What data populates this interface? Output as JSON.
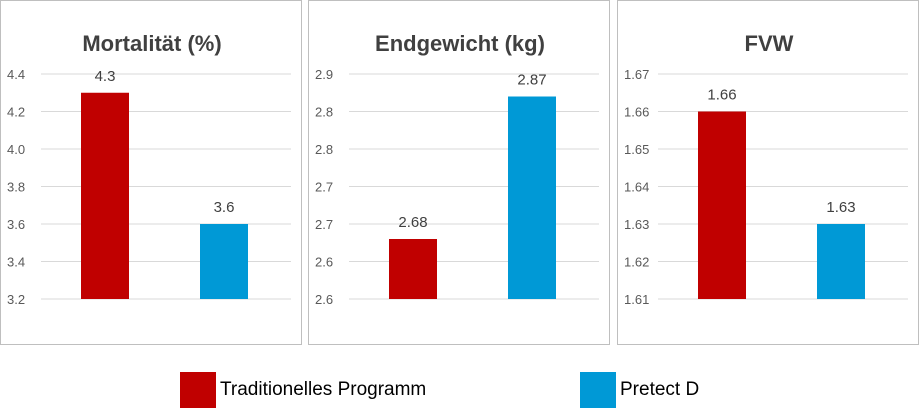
{
  "colors": {
    "series1": "#c00000",
    "series2": "#0099d6",
    "gridline": "#d9d9d9",
    "border": "#bfbfbf"
  },
  "legend": {
    "items": [
      {
        "label": "Traditionelles Programm",
        "color": "#c00000"
      },
      {
        "label": "Pretect D",
        "color": "#0099d6"
      }
    ]
  },
  "chart_data": [
    {
      "type": "bar",
      "title": "Mortalität (%)",
      "categories": [
        "Traditionelles Programm",
        "Pretect D"
      ],
      "values": [
        4.3,
        3.6
      ],
      "value_labels": [
        "4.3",
        "3.6"
      ],
      "ylim": [
        3.2,
        4.4
      ],
      "yticks": [
        3.2,
        3.4,
        3.6,
        3.8,
        4.0,
        4.2,
        4.4
      ],
      "ytick_labels": [
        "3.2",
        "3.4",
        "3.6",
        "3.8",
        "4.0",
        "4.2",
        "4.4"
      ],
      "grid": true,
      "legend_position": "bottom"
    },
    {
      "type": "bar",
      "title": "Endgewicht (kg)",
      "categories": [
        "Traditionelles Programm",
        "Pretect D"
      ],
      "values": [
        2.68,
        2.87
      ],
      "value_labels": [
        "2.68",
        "2.87"
      ],
      "ylim": [
        2.6,
        2.9
      ],
      "yticks": [
        2.6,
        2.65,
        2.7,
        2.75,
        2.8,
        2.85,
        2.9
      ],
      "ytick_labels": [
        "2.6",
        "2.6",
        "2.7",
        "2.7",
        "2.8",
        "2.8",
        "2.9"
      ],
      "grid": true,
      "legend_position": "bottom"
    },
    {
      "type": "bar",
      "title": "FVW",
      "categories": [
        "Traditionelles Programm",
        "Pretect D"
      ],
      "values": [
        1.66,
        1.63
      ],
      "value_labels": [
        "1.66",
        "1.63"
      ],
      "ylim": [
        1.61,
        1.67
      ],
      "yticks": [
        1.61,
        1.62,
        1.63,
        1.64,
        1.65,
        1.66,
        1.67
      ],
      "ytick_labels": [
        "1.61",
        "1.62",
        "1.63",
        "1.64",
        "1.65",
        "1.66",
        "1.67"
      ],
      "grid": true,
      "legend_position": "bottom"
    }
  ]
}
